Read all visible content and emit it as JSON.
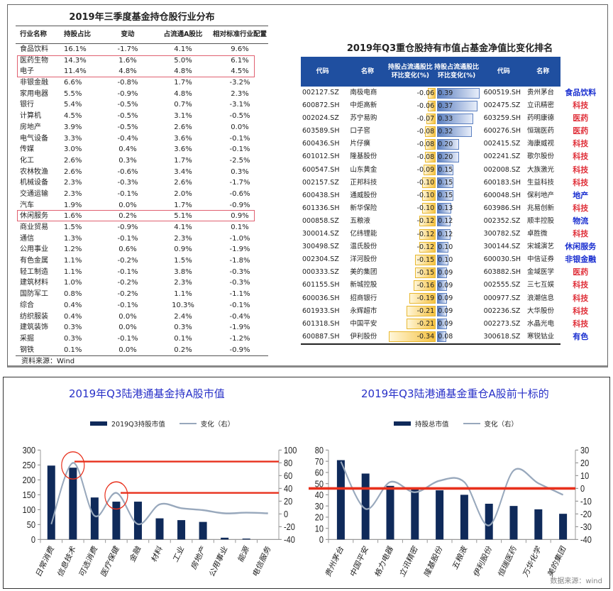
{
  "left_table": {
    "title": "2019年三季度基金持仓股行业分布",
    "headers": [
      "行业名称",
      "持股占比",
      "变动",
      "占流通A股比",
      "相对标准行业配置"
    ],
    "rows": [
      [
        "食品饮料",
        "16.1%",
        "-1.7%",
        "4.1%",
        "9.6%"
      ],
      [
        "医药生物",
        "14.3%",
        "1.6%",
        "5.0%",
        "6.1%"
      ],
      [
        "电子",
        "11.4%",
        "4.8%",
        "4.8%",
        "4.5%"
      ],
      [
        "非银金融",
        "6.6%",
        "-0.8%",
        "1.7%",
        "-3.2%"
      ],
      [
        "家用电器",
        "5.5%",
        "-0.9%",
        "4.8%",
        "2.3%"
      ],
      [
        "银行",
        "5.4%",
        "-0.5%",
        "0.7%",
        "-3.1%"
      ],
      [
        "计算机",
        "4.5%",
        "-0.5%",
        "3.1%",
        "-0.5%"
      ],
      [
        "房地产",
        "3.9%",
        "-0.5%",
        "2.6%",
        "0.0%"
      ],
      [
        "电气设备",
        "3.3%",
        "-0.4%",
        "3.6%",
        "-0.1%"
      ],
      [
        "传媒",
        "3.0%",
        "0.4%",
        "3.6%",
        "-0.1%"
      ],
      [
        "化工",
        "2.6%",
        "0.3%",
        "1.7%",
        "-2.5%"
      ],
      [
        "农林牧渔",
        "2.6%",
        "-0.6%",
        "3.4%",
        "0.3%"
      ],
      [
        "机械设备",
        "2.3%",
        "-0.3%",
        "2.6%",
        "-1.7%"
      ],
      [
        "交通运输",
        "2.3%",
        "-0.1%",
        "2.0%",
        "-0.6%"
      ],
      [
        "汽车",
        "1.9%",
        "0.0%",
        "1.7%",
        "-0.9%"
      ],
      [
        "休闲服务",
        "1.6%",
        "0.2%",
        "5.1%",
        "0.9%"
      ],
      [
        "商业贸易",
        "1.5%",
        "-0.9%",
        "4.1%",
        "0.1%"
      ],
      [
        "通信",
        "1.3%",
        "-0.1%",
        "2.3%",
        "-1.0%"
      ],
      [
        "公用事业",
        "1.2%",
        "0.6%",
        "0.9%",
        "-1.9%"
      ],
      [
        "有色金属",
        "1.1%",
        "-0.2%",
        "1.5%",
        "-1.8%"
      ],
      [
        "轻工制造",
        "1.1%",
        "-0.1%",
        "3.8%",
        "-0.3%"
      ],
      [
        "建筑材料",
        "1.0%",
        "-0.2%",
        "2.3%",
        "-0.3%"
      ],
      [
        "国防军工",
        "0.8%",
        "-0.2%",
        "1.1%",
        "-1.1%"
      ],
      [
        "综合",
        "0.4%",
        "-0.1%",
        "10.3%",
        "-0.1%"
      ],
      [
        "纺织服装",
        "0.4%",
        "0.0%",
        "2.4%",
        "-0.4%"
      ],
      [
        "建筑装饰",
        "0.3%",
        "0.0%",
        "0.3%",
        "-1.9%"
      ],
      [
        "采掘",
        "0.3%",
        "-0.1%",
        "0.1%",
        "-1.2%"
      ],
      [
        "钢铁",
        "0.1%",
        "0.0%",
        "0.2%",
        "-0.9%"
      ]
    ],
    "highlighted_rows": [
      "医药生物",
      "电子",
      "休闲服务"
    ],
    "footer": "资料来源：Wind"
  },
  "right_table": {
    "title": "2019年Q3重仓股持有市值占基金净值比变化排名",
    "headers": [
      "代码",
      "名称",
      "持股占流通股比环比变化(%)",
      "持股占流通股比环比变化(%)",
      "代码",
      "名称"
    ],
    "rows": [
      [
        "002127.SZ",
        "南极电商",
        "-0.06",
        "0.39",
        "600519.SH",
        "贵州茅台",
        "食品饮料",
        "blue"
      ],
      [
        "600872.SH",
        "中炬高新",
        "-0.06",
        "0.37",
        "002475.SZ",
        "立讯精密",
        "科技",
        "red"
      ],
      [
        "002024.SZ",
        "苏宁易购",
        "-0.07",
        "0.33",
        "603259.SH",
        "药明康德",
        "医药",
        "red"
      ],
      [
        "603589.SH",
        "口子窖",
        "-0.08",
        "0.32",
        "600276.SH",
        "恒瑞医药",
        "医药",
        "red"
      ],
      [
        "600436.SH",
        "片仔癀",
        "-0.08",
        "0.20",
        "002415.SZ",
        "海康威视",
        "科技",
        "red"
      ],
      [
        "601012.SH",
        "隆基股份",
        "-0.08",
        "0.20",
        "002241.SZ",
        "歌尔股份",
        "科技",
        "red"
      ],
      [
        "600547.SH",
        "山东黄金",
        "-0.09",
        "0.15",
        "002008.SZ",
        "大族激光",
        "科技",
        "red"
      ],
      [
        "002157.SZ",
        "正邦科技",
        "-0.10",
        "0.15",
        "600183.SH",
        "生益科技",
        "科技",
        "red"
      ],
      [
        "600438.SH",
        "通威股份",
        "-0.10",
        "0.15",
        "600048.SH",
        "保利地产",
        "地产",
        "blue"
      ],
      [
        "601336.SH",
        "新华保险",
        "-0.10",
        "0.13",
        "603986.SH",
        "兆易创新",
        "科技",
        "red"
      ],
      [
        "000858.SZ",
        "五粮液",
        "-0.12",
        "0.12",
        "002352.SZ",
        "顺丰控股",
        "物流",
        "blue"
      ],
      [
        "300014.SZ",
        "亿纬锂能",
        "-0.12",
        "0.12",
        "300782.SZ",
        "卓胜微",
        "科技",
        "red"
      ],
      [
        "300498.SZ",
        "温氏股份",
        "-0.12",
        "0.10",
        "300144.SZ",
        "宋城演艺",
        "休闲服务",
        "blue"
      ],
      [
        "002304.SZ",
        "洋河股份",
        "-0.15",
        "0.10",
        "600030.SH",
        "中信证券",
        "非银金融",
        "blue"
      ],
      [
        "000333.SZ",
        "美的集团",
        "-0.15",
        "0.09",
        "603882.SH",
        "金域医学",
        "医药",
        "red"
      ],
      [
        "601155.SH",
        "新城控股",
        "-0.16",
        "0.09",
        "002555.SZ",
        "三七互娱",
        "科技",
        "red"
      ],
      [
        "600036.SH",
        "招商银行",
        "-0.19",
        "0.09",
        "000977.SZ",
        "浪潮信息",
        "科技",
        "red"
      ],
      [
        "601933.SH",
        "永辉超市",
        "-0.21",
        "0.09",
        "002236.SZ",
        "大华股份",
        "科技",
        "red"
      ],
      [
        "601318.SH",
        "中国平安",
        "-0.21",
        "0.09",
        "002273.SZ",
        "水晶光电",
        "科技",
        "red"
      ],
      [
        "600887.SH",
        "伊利股份",
        "-0.34",
        "0.08",
        "300618.SZ",
        "寒锐钴业",
        "有色",
        "blue"
      ]
    ]
  },
  "chart_data": [
    {
      "type": "bar",
      "title": "2019年Q3陆港通基金持A股市值",
      "legend": [
        "2019Q3持股市值",
        "变化（右）"
      ],
      "categories": [
        "日常消费",
        "信息技术",
        "可选消费",
        "医疗保健",
        "金融",
        "材料",
        "工业",
        "房地产",
        "公用事业",
        "能源",
        "电信服务"
      ],
      "series": [
        {
          "name": "2019Q3持股市值",
          "type": "bar",
          "axis": "left",
          "values": [
            248,
            241,
            141,
            127,
            127,
            71,
            65,
            59,
            6,
            3,
            0
          ]
        },
        {
          "name": "变化（右）",
          "type": "line",
          "axis": "right",
          "values": [
            -16,
            80,
            -3,
            33,
            -16,
            15,
            9,
            6,
            1,
            2,
            1
          ]
        }
      ],
      "ylim": [
        0,
        300
      ],
      "yticks": [
        0,
        50,
        100,
        150,
        200,
        250,
        300
      ],
      "y2lim": [
        -40,
        100
      ],
      "y2ticks": [
        -40,
        -20,
        0,
        20,
        40,
        60,
        80,
        100
      ],
      "annotations": [
        {
          "type": "hline",
          "axis": "right",
          "value": 82,
          "color": "#e8301c"
        },
        {
          "type": "hline",
          "axis": "right",
          "value": 33,
          "color": "#e8301c"
        },
        {
          "type": "circle",
          "category": "信息技术"
        },
        {
          "type": "circle",
          "category": "医疗保健"
        }
      ]
    },
    {
      "type": "bar",
      "title": "2019年Q3陆港通基金重仓A股前十标的",
      "legend": [
        "持股总市值",
        "变化（右）"
      ],
      "categories": [
        "贵州茅台",
        "中国平安",
        "格力电器",
        "立讯精密",
        "隆基股份",
        "五粮液",
        "伊利股份",
        "恒瑞医药",
        "万华化学",
        "美的集团"
      ],
      "series": [
        {
          "name": "持股总市值",
          "type": "bar",
          "axis": "left",
          "values": [
            71,
            59,
            48,
            46,
            44,
            40,
            32,
            30,
            27,
            23
          ]
        },
        {
          "name": "变化（右）",
          "type": "line",
          "axis": "right",
          "values": [
            21,
            -16,
            5,
            -3,
            6,
            5,
            -29,
            14,
            4,
            -5
          ]
        }
      ],
      "ylim": [
        0,
        80
      ],
      "yticks": [
        0,
        10,
        20,
        30,
        40,
        50,
        60,
        70,
        80
      ],
      "y2lim": [
        -40,
        30
      ],
      "y2ticks": [
        -40,
        -30,
        -20,
        -10,
        0,
        10,
        20,
        30
      ],
      "annotations": [
        {
          "type": "hline",
          "axis": "right",
          "value": 0,
          "color": "#e8301c"
        }
      ]
    }
  ],
  "source_note": "数据来源：wind",
  "colors": {
    "bar": "#0f2a5a",
    "line": "#98a8bc",
    "highlight": "#e8301c",
    "title_blue": "#2830c8",
    "table_header": "#1f4fa0"
  }
}
